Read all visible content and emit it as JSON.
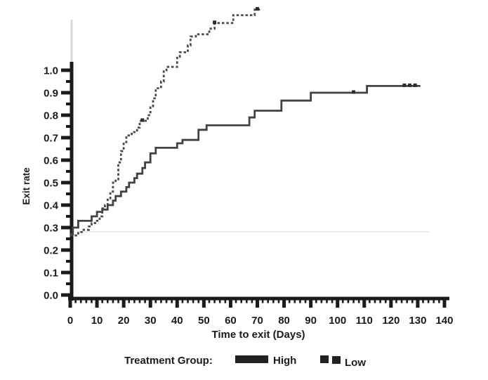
{
  "figure": {
    "background": "#ffffff",
    "ink_color": "#1b1b1b",
    "solid_curve_color": "#424242",
    "dashed_curve_color": "#4a4a4a",
    "scan_artifact_color": "#ececec",
    "legend": {
      "title": "Treatment Group:",
      "items": [
        {
          "label": "High",
          "swatch": "solid-bar"
        },
        {
          "label": "Low",
          "swatch": "dashed-squares"
        }
      ]
    }
  },
  "chart_data": {
    "type": "line",
    "subtype": "kaplan-meier-step",
    "title": "",
    "xlabel": "Time to exit (Days)",
    "ylabel": "Exit rate",
    "xlim": [
      0,
      140
    ],
    "ylim": [
      0.0,
      1.0
    ],
    "grid": "off",
    "legend_position": "bottom",
    "x_tick_labels": [
      "0",
      "10",
      "20",
      "30",
      "40",
      "50",
      "60",
      "70",
      "80",
      "90",
      "100",
      "110",
      "120",
      "130",
      "140"
    ],
    "x_minor_tick_step_days": 2,
    "y_tick_labels": [
      "0.0",
      "0.1",
      "0.2",
      "0.3",
      "0.4",
      "0.5",
      "0.6",
      "0.7",
      "0.8",
      "0.9",
      "1.0"
    ],
    "y_minor_tick_step": 0.05,
    "series": [
      {
        "name": "High",
        "line": "solid",
        "steps": [
          [
            0,
            0.27
          ],
          [
            1,
            0.3
          ],
          [
            3,
            0.33
          ],
          [
            8,
            0.35
          ],
          [
            10,
            0.37
          ],
          [
            12,
            0.38
          ],
          [
            14,
            0.4
          ],
          [
            16,
            0.42
          ],
          [
            17,
            0.44
          ],
          [
            19,
            0.46
          ],
          [
            21,
            0.48
          ],
          [
            22,
            0.5
          ],
          [
            24,
            0.52
          ],
          [
            25,
            0.54
          ],
          [
            27,
            0.565
          ],
          [
            28,
            0.59
          ],
          [
            30,
            0.63
          ],
          [
            32,
            0.655
          ],
          [
            40,
            0.675
          ],
          [
            42,
            0.69
          ],
          [
            48,
            0.735
          ],
          [
            51,
            0.755
          ],
          [
            67,
            0.79
          ],
          [
            69,
            0.82
          ],
          [
            79,
            0.865
          ],
          [
            90,
            0.9
          ],
          [
            111,
            0.93
          ]
        ],
        "end_day": 131,
        "censor_marks": [
          [
            106,
            0.9
          ],
          [
            125,
            0.93
          ],
          [
            127,
            0.93
          ],
          [
            129,
            0.93
          ]
        ]
      },
      {
        "name": "Low",
        "line": "dashed",
        "steps": [
          [
            0,
            0.265
          ],
          [
            3,
            0.28
          ],
          [
            5,
            0.29
          ],
          [
            7,
            0.305
          ],
          [
            8,
            0.32
          ],
          [
            10,
            0.33
          ],
          [
            11,
            0.35
          ],
          [
            12,
            0.385
          ],
          [
            13,
            0.4
          ],
          [
            14,
            0.43
          ],
          [
            15,
            0.46
          ],
          [
            16,
            0.5
          ],
          [
            17,
            0.515
          ],
          [
            18,
            0.59
          ],
          [
            19,
            0.64
          ],
          [
            20,
            0.68
          ],
          [
            21,
            0.71
          ],
          [
            23,
            0.725
          ],
          [
            25,
            0.745
          ],
          [
            26,
            0.775
          ],
          [
            29,
            0.8
          ],
          [
            30,
            0.84
          ],
          [
            31,
            0.875
          ],
          [
            32,
            0.92
          ],
          [
            34,
            0.95
          ],
          [
            35,
            1.0
          ],
          [
            36,
            1.015
          ],
          [
            40,
            1.06
          ],
          [
            41,
            1.08
          ],
          [
            44,
            1.11
          ],
          [
            45,
            1.15
          ],
          [
            47,
            1.16
          ],
          [
            52,
            1.185
          ],
          [
            54,
            1.21
          ],
          [
            61,
            1.245
          ],
          [
            69,
            1.27
          ]
        ],
        "end_day": 71,
        "censor_marks": [
          [
            27,
            0.775
          ],
          [
            54,
            1.21
          ],
          [
            70,
            1.27
          ]
        ]
      }
    ]
  }
}
